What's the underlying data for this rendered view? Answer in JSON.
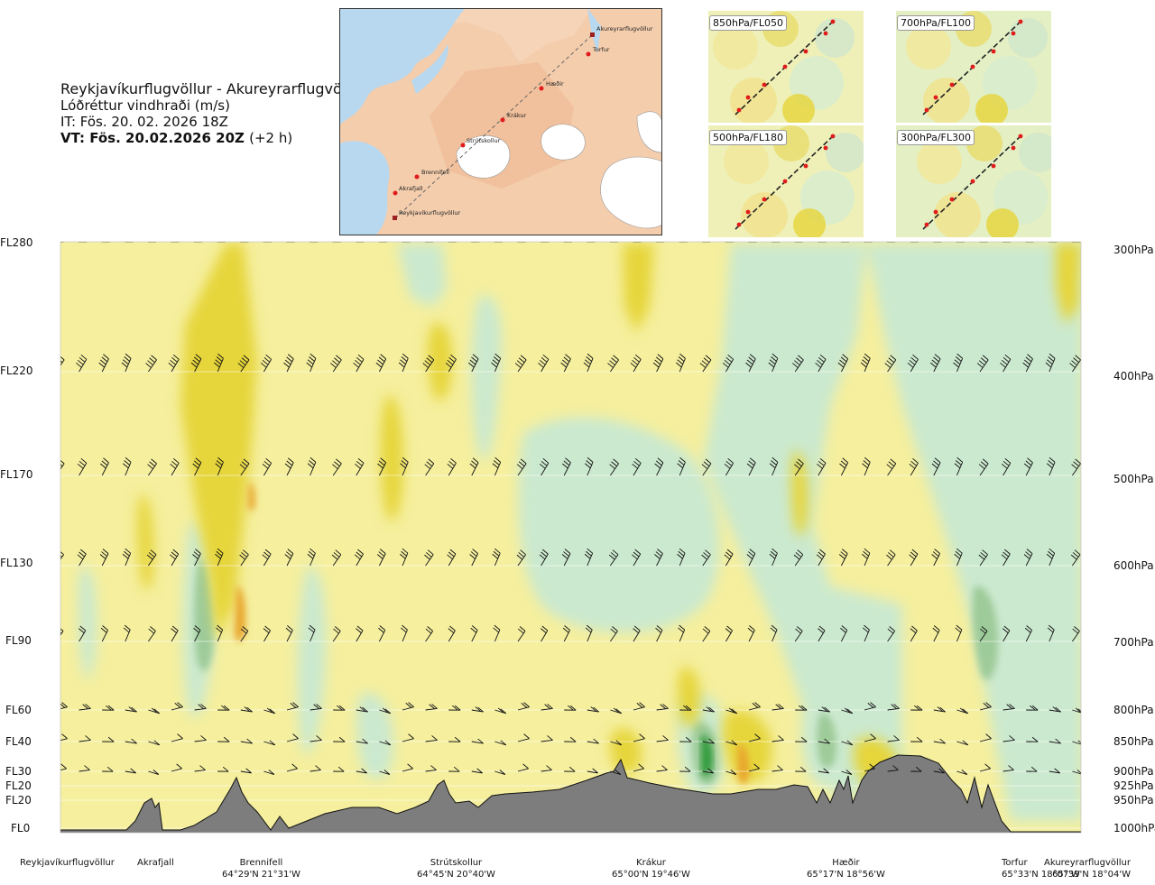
{
  "header": {
    "route": "Reykjavíkurflugvöllur - Akureyrarflugvöllur",
    "param": "Lóðréttur vindhraði (m/s)",
    "it": "IT: Fös. 20. 02. 2026 18Z",
    "vt": "VT: Fös. 20.02.2026 20Z",
    "vt_offset": "(+2 h)"
  },
  "map": {
    "waypoints": [
      "Reykjavíkurflugvöllur",
      "Akrafjall",
      "Brennifell",
      "Strútskollur",
      "Krákur",
      "Hæðir",
      "Torfur",
      "Akureyrarflugvöllur"
    ]
  },
  "minimaps": [
    {
      "label": "850hPa/FL050"
    },
    {
      "label": "700hPa/FL100"
    },
    {
      "label": "500hPa/FL180"
    },
    {
      "label": "300hPa/FL300"
    }
  ],
  "levels": [
    {
      "fl": "FL280",
      "hpa": "300hPa"
    },
    {
      "fl": "FL220",
      "hpa": "400hPa"
    },
    {
      "fl": "FL170",
      "hpa": "500hPa"
    },
    {
      "fl": "FL130",
      "hpa": "600hPa"
    },
    {
      "fl": "FL90",
      "hpa": "700hPa"
    },
    {
      "fl": "FL60",
      "hpa": "800hPa"
    },
    {
      "fl": "FL40",
      "hpa": "850hPa"
    },
    {
      "fl": "FL30",
      "hpa": "900hPa"
    },
    {
      "fl": "FL20",
      "hpa": "925hPa"
    },
    {
      "fl": "FL20",
      "hpa": "950hPa"
    },
    {
      "fl": "FL0",
      "hpa": "1000hPa"
    }
  ],
  "sites": [
    {
      "name": "Reykjavíkurflugvöllur",
      "coord": ""
    },
    {
      "name": "Akrafjall",
      "coord": ""
    },
    {
      "name": "Brennifell",
      "coord": "64°29'N 21°31'W"
    },
    {
      "name": "Strútskollur",
      "coord": "64°45'N 20°40'W"
    },
    {
      "name": "Krákur",
      "coord": "65°00'N 19°46'W"
    },
    {
      "name": "Hæðir",
      "coord": "65°17'N 18°56'W"
    },
    {
      "name": "Torfur",
      "coord": "65°33'N 18°07'W"
    },
    {
      "name": "Akureyrarflugvöllur",
      "coord": "65°39'N 18°04'W"
    }
  ],
  "chart_data": {
    "type": "heatmap",
    "title": "Lóðréttur vindhraði (m/s)",
    "xlabel": "",
    "ylabel": "",
    "y_ticks_left": [
      "FL280",
      "FL220",
      "FL170",
      "FL130",
      "FL90",
      "FL60",
      "FL40",
      "FL30",
      "FL20",
      "FL20",
      "FL0"
    ],
    "y_ticks_right": [
      "300hPa",
      "400hPa",
      "500hPa",
      "600hPa",
      "700hPa",
      "800hPa",
      "850hPa",
      "900hPa",
      "925hPa",
      "950hPa",
      "1000hPa"
    ],
    "x_ticks": [
      "Reykjavíkurflugvöllur",
      "Akrafjall",
      "Brennifell",
      "Strútskollur",
      "Krákur",
      "Hæðir",
      "Torfur",
      "Akureyrarflugvöllur"
    ],
    "colors": {
      "strong_up": "#e6d53a",
      "up": "#f5ef9e",
      "neutral": "#fbfbe6",
      "down": "#cbe9cf",
      "strong_down": "#9ecb9a",
      "max_down": "#2f9a3a",
      "max_up": "#e8a42a",
      "terrain": "#7d7d7d"
    },
    "grid": true
  }
}
